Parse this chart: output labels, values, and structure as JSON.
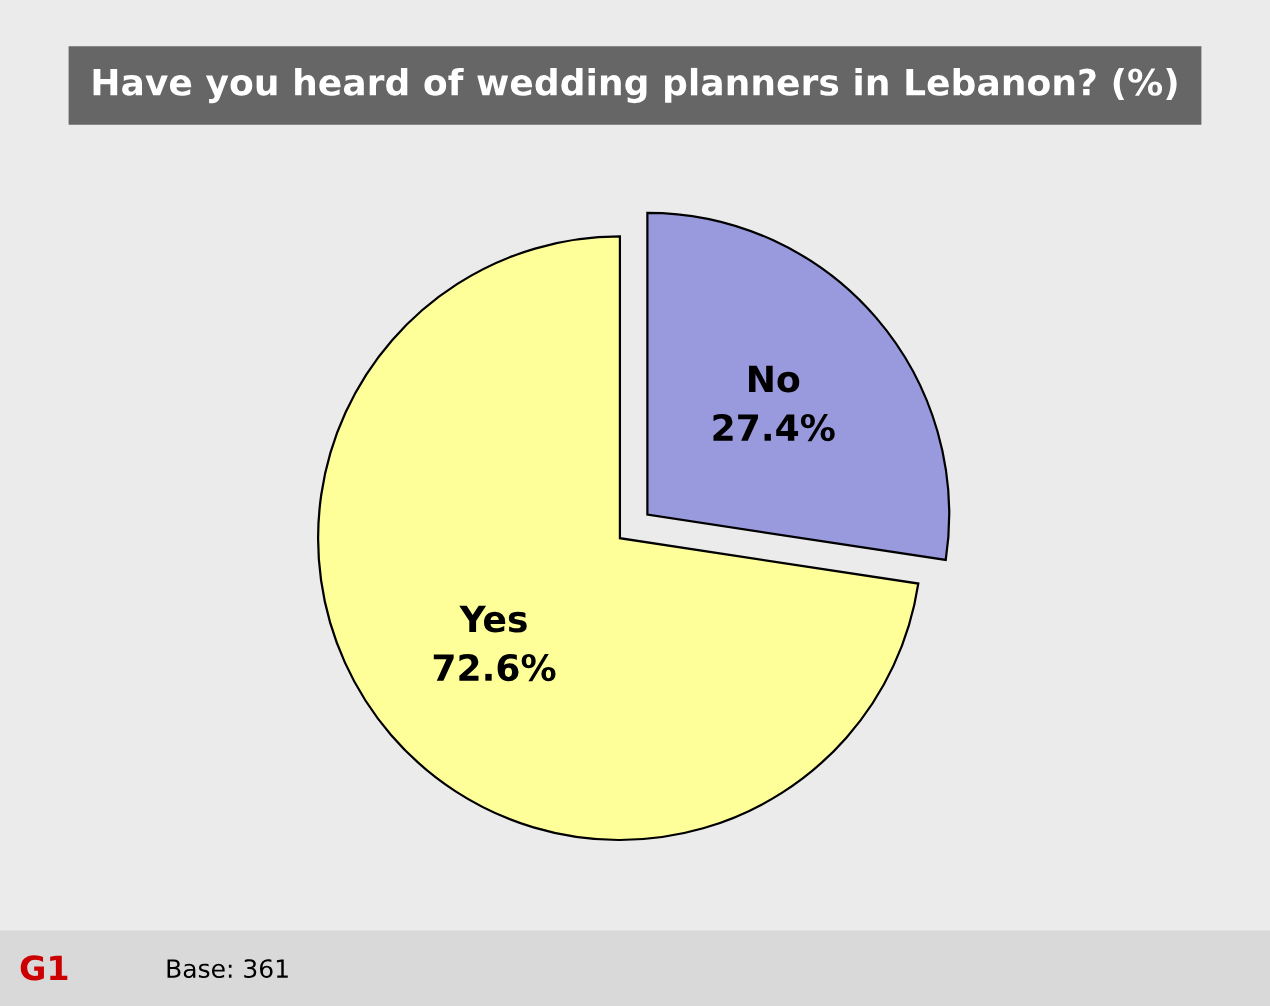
{
  "chart_data": {
    "type": "pie",
    "title": "Have you heard of wedding planners in Lebanon? (%)",
    "categories": [
      "Yes",
      "No"
    ],
    "values": [
      72.6,
      27.4
    ],
    "colors": [
      "#ffff99",
      "#9999dd"
    ],
    "value_labels": [
      "72.6%",
      "27.4%"
    ],
    "legend": false,
    "annotations": [
      "G1",
      "Base: 361"
    ]
  }
}
